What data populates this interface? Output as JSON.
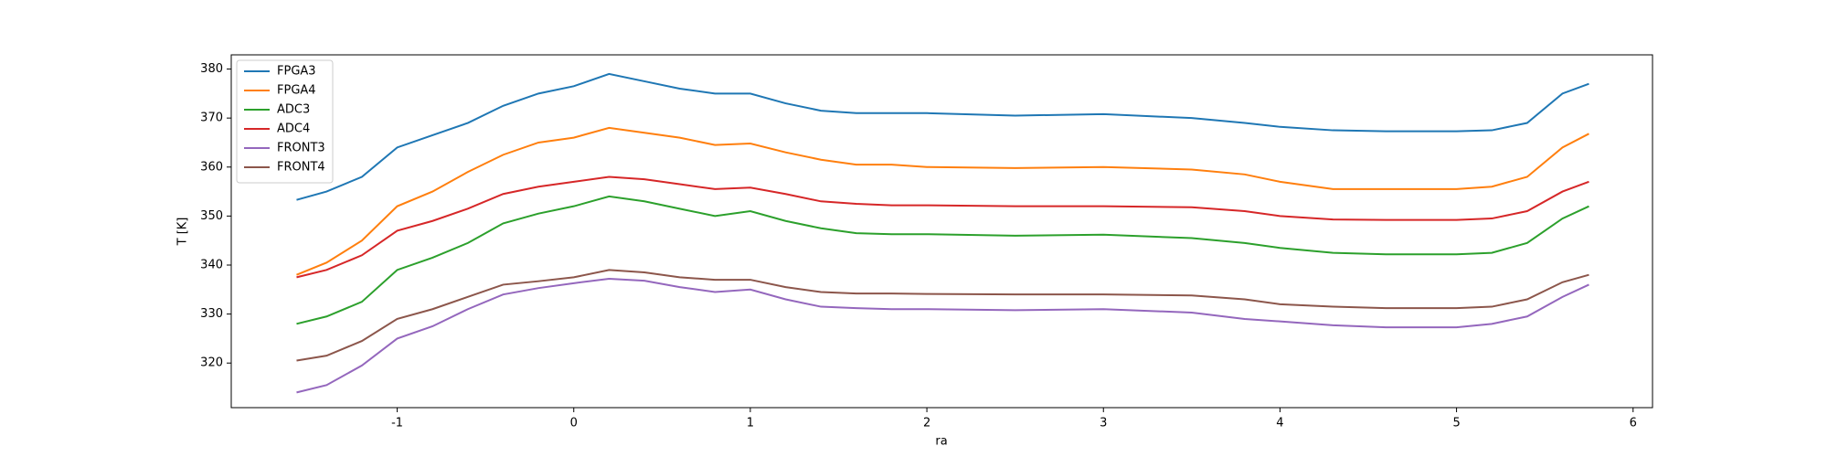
{
  "chart_data": {
    "type": "line",
    "xlabel": "ra",
    "ylabel": "T [K]",
    "x": [
      -1.57,
      -1.4,
      -1.2,
      -1.0,
      -0.8,
      -0.6,
      -0.4,
      -0.2,
      0,
      0.2,
      0.4,
      0.6,
      0.8,
      1.0,
      1.2,
      1.4,
      1.6,
      1.8,
      2.0,
      2.5,
      3.0,
      3.5,
      3.8,
      4.0,
      4.3,
      4.6,
      5.0,
      5.2,
      5.4,
      5.6,
      5.75
    ],
    "series": [
      {
        "name": "FPGA3",
        "color": "#1f77b4",
        "values": [
          353.3,
          355,
          358,
          364,
          366.5,
          369,
          372.5,
          375,
          376.5,
          379,
          377.5,
          376,
          375,
          375,
          373,
          371.5,
          371,
          371,
          371,
          370.5,
          370.8,
          370,
          369,
          368.2,
          367.5,
          367.3,
          367.3,
          367.5,
          369,
          375,
          377
        ]
      },
      {
        "name": "FPGA4",
        "color": "#ff7f0e",
        "values": [
          338,
          340.5,
          345,
          352,
          355,
          359,
          362.5,
          365,
          366,
          368,
          367,
          366,
          364.5,
          364.8,
          363,
          361.5,
          360.5,
          360.5,
          360,
          359.8,
          360,
          359.5,
          358.5,
          357,
          355.5,
          355.5,
          355.5,
          356,
          358,
          364,
          366.8
        ]
      },
      {
        "name": "ADC3",
        "color": "#2ca02c",
        "values": [
          328,
          329.5,
          332.5,
          339,
          341.5,
          344.5,
          348.5,
          350.5,
          352,
          354,
          353,
          351.5,
          350,
          351,
          349,
          347.5,
          346.5,
          346.3,
          346.3,
          346,
          346.2,
          345.5,
          344.5,
          343.5,
          342.5,
          342.2,
          342.2,
          342.5,
          344.5,
          349.5,
          352
        ]
      },
      {
        "name": "ADC4",
        "color": "#d62728",
        "values": [
          337.5,
          339,
          342,
          347,
          349,
          351.5,
          354.5,
          356,
          357,
          358,
          357.5,
          356.5,
          355.5,
          355.8,
          354.5,
          353,
          352.5,
          352.2,
          352.2,
          352,
          352,
          351.8,
          351,
          350,
          349.3,
          349.2,
          349.2,
          349.5,
          351,
          355,
          357
        ]
      },
      {
        "name": "FRONT3",
        "color": "#9467bd",
        "values": [
          314,
          315.5,
          319.5,
          325,
          327.5,
          331,
          334,
          335.3,
          336.3,
          337.2,
          336.8,
          335.5,
          334.5,
          335,
          333,
          331.5,
          331.2,
          331,
          331,
          330.8,
          331,
          330.3,
          329,
          328.5,
          327.7,
          327.3,
          327.3,
          328,
          329.5,
          333.5,
          336
        ]
      },
      {
        "name": "FRONT4",
        "color": "#8c564b",
        "values": [
          320.5,
          321.5,
          324.5,
          329,
          331,
          333.5,
          336,
          336.7,
          337.5,
          339,
          338.5,
          337.5,
          337,
          337,
          335.5,
          334.5,
          334.2,
          334.2,
          334.1,
          334,
          334,
          333.8,
          333,
          332,
          331.5,
          331.2,
          331.2,
          331.5,
          333,
          336.5,
          338
        ]
      }
    ],
    "xlim": [
      -1.94,
      6.11
    ],
    "xticks": [
      -1,
      0,
      1,
      2,
      3,
      4,
      5,
      6
    ],
    "ylim": [
      310.9,
      382.9
    ],
    "yticks": [
      320,
      330,
      340,
      350,
      360,
      370,
      380
    ],
    "legend": "upper-left",
    "grid": false
  }
}
